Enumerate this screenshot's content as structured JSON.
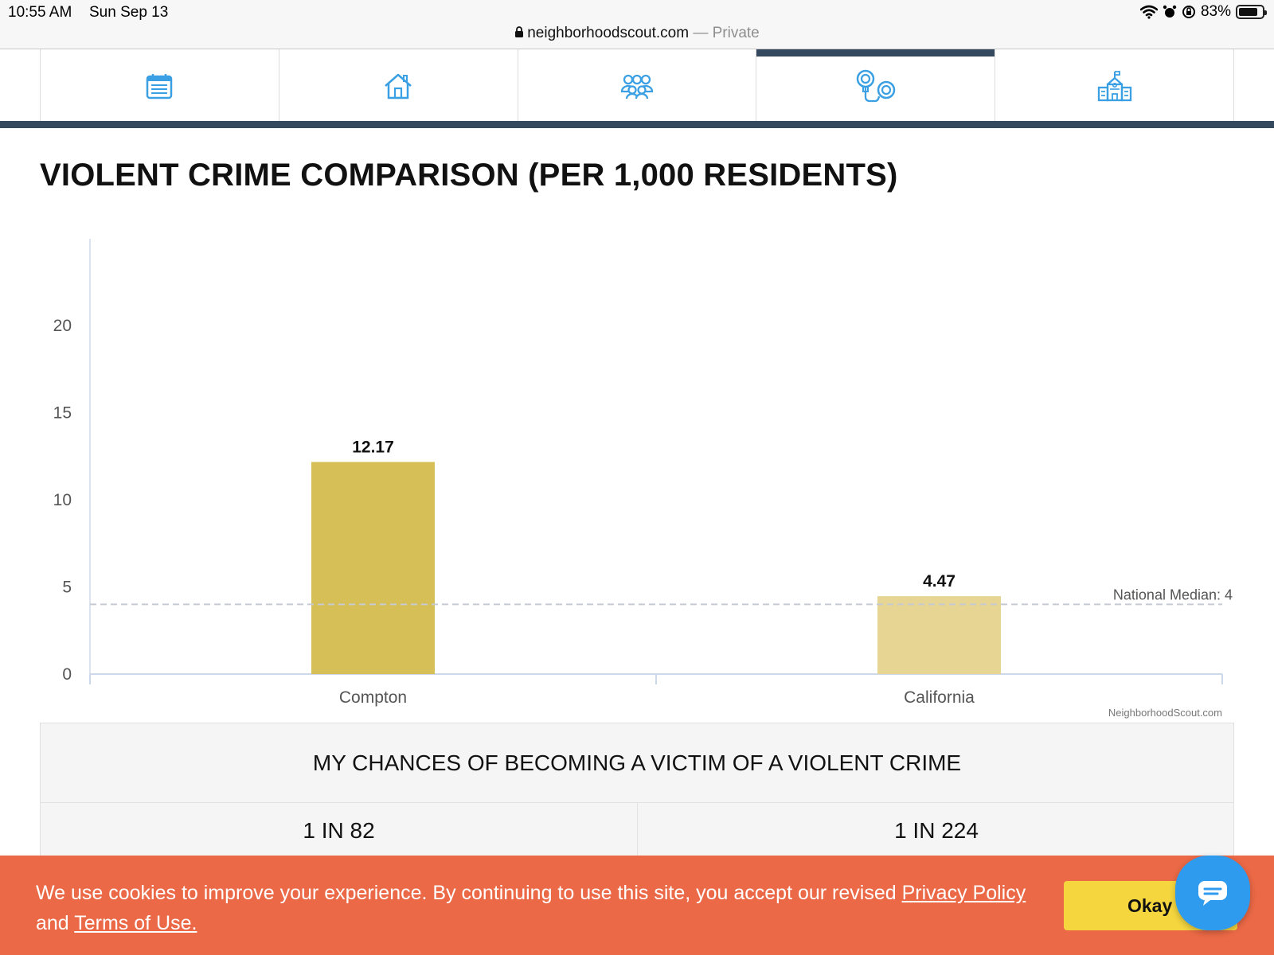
{
  "status_bar": {
    "time": "10:55 AM",
    "date": "Sun Sep 13",
    "battery": "83%",
    "battery_level": 0.83
  },
  "browser": {
    "domain": "neighborhoodscout.com",
    "separator": " — ",
    "mode": "Private"
  },
  "tabs": [
    {
      "icon": "calendar-list-icon",
      "active": false
    },
    {
      "icon": "house-icon",
      "active": false
    },
    {
      "icon": "people-group-icon",
      "active": false
    },
    {
      "icon": "handcuffs-icon",
      "active": true
    },
    {
      "icon": "school-building-icon",
      "active": false
    }
  ],
  "page_title": "VIOLENT CRIME COMPARISON (PER 1,000 RESIDENTS)",
  "chart_data": {
    "type": "bar",
    "title": "VIOLENT CRIME COMPARISON (PER 1,000 RESIDENTS)",
    "categories": [
      "Compton",
      "California"
    ],
    "values": [
      12.17,
      4.47
    ],
    "value_labels": [
      "12.17",
      "4.47"
    ],
    "bar_colors": [
      "#d6bf57",
      "#e7d594"
    ],
    "yticks": [
      0,
      5,
      10,
      15,
      20
    ],
    "ylim": [
      0,
      25
    ],
    "reference_line": {
      "value": 4,
      "label": "National Median: 4"
    },
    "xlabel": "",
    "ylabel": "",
    "credit": "NeighborhoodScout.com"
  },
  "chances": {
    "title": "MY CHANCES OF BECOMING A VICTIM OF A VIOLENT CRIME",
    "values": [
      "1 IN 82",
      "1 IN 224"
    ]
  },
  "cookie": {
    "text": "We use cookies to improve your experience. By continuing to use this site, you accept our revised ",
    "privacy_link": "Privacy Policy",
    "and": " and ",
    "terms_link": "Terms of Use.",
    "button": "Okay"
  },
  "colors": {
    "icon_blue": "#3aa0e3",
    "nav_dark": "#34495e",
    "cookie_bg": "#eb6946",
    "okay_bg": "#f5d63f",
    "chat_bg": "#2f9bef"
  }
}
